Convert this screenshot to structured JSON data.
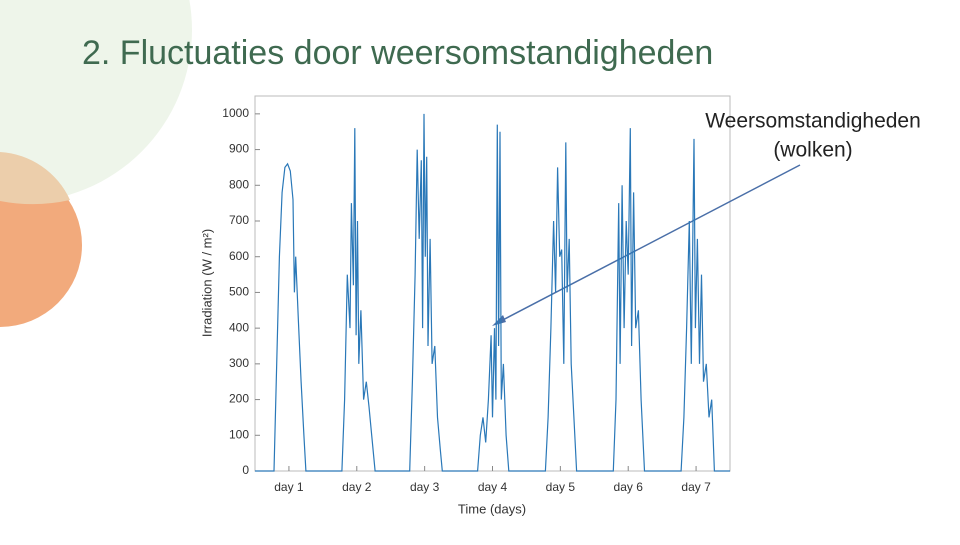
{
  "chart_data": {
    "type": "line",
    "title": "2. Fluctuaties door weersomstandigheden",
    "x_label": "Time (days)",
    "y_label": "Irradiation (W / m²)",
    "annotation": [
      "Weersomstandigheden",
      "(wolken)"
    ],
    "color": "#2a78b8",
    "xlim": [
      0.5,
      7.5
    ],
    "xticks": [
      {
        "value": 1,
        "label": "day 1"
      },
      {
        "value": 2,
        "label": "day 2"
      },
      {
        "value": 3,
        "label": "day 3"
      },
      {
        "value": 4,
        "label": "day 4"
      },
      {
        "value": 5,
        "label": "day 5"
      },
      {
        "value": 6,
        "label": "day 6"
      },
      {
        "value": 7,
        "label": "day 7"
      }
    ],
    "ylim": [
      0,
      1050
    ],
    "yticks": [
      0,
      100,
      200,
      300,
      400,
      500,
      600,
      700,
      800,
      900,
      1000
    ],
    "x": [
      0.5,
      0.78,
      0.82,
      0.86,
      0.9,
      0.94,
      0.98,
      1.02,
      1.06,
      1.08,
      1.1,
      1.14,
      1.18,
      1.22,
      1.25,
      1.78,
      1.82,
      1.86,
      1.9,
      1.92,
      1.95,
      1.97,
      1.99,
      2.01,
      2.03,
      2.06,
      2.1,
      2.14,
      2.18,
      2.22,
      2.27,
      2.78,
      2.82,
      2.86,
      2.89,
      2.92,
      2.95,
      2.97,
      2.99,
      3.01,
      3.03,
      3.05,
      3.08,
      3.11,
      3.15,
      3.19,
      3.23,
      3.26,
      3.78,
      3.82,
      3.86,
      3.9,
      3.94,
      3.98,
      4.0,
      4.03,
      4.05,
      4.07,
      4.09,
      4.11,
      4.13,
      4.16,
      4.2,
      4.24,
      4.78,
      4.82,
      4.86,
      4.9,
      4.93,
      4.96,
      4.99,
      5.02,
      5.05,
      5.08,
      5.1,
      5.13,
      5.16,
      5.2,
      5.24,
      5.78,
      5.82,
      5.86,
      5.88,
      5.91,
      5.94,
      5.97,
      6.0,
      6.03,
      6.05,
      6.08,
      6.11,
      6.15,
      6.19,
      6.24,
      6.78,
      6.82,
      6.86,
      6.9,
      6.93,
      6.97,
      6.99,
      7.02,
      7.05,
      7.08,
      7.11,
      7.15,
      7.19,
      7.23,
      7.27,
      7.5
    ],
    "values": [
      0,
      0,
      300,
      600,
      780,
      850,
      860,
      840,
      760,
      500,
      600,
      420,
      250,
      100,
      0,
      0,
      200,
      550,
      400,
      750,
      520,
      960,
      380,
      700,
      300,
      450,
      200,
      250,
      180,
      100,
      0,
      0,
      250,
      550,
      900,
      650,
      870,
      400,
      1000,
      600,
      880,
      350,
      650,
      300,
      350,
      150,
      60,
      0,
      0,
      100,
      150,
      80,
      200,
      380,
      150,
      400,
      200,
      970,
      350,
      950,
      200,
      300,
      100,
      0,
      0,
      150,
      400,
      700,
      500,
      850,
      600,
      620,
      300,
      920,
      500,
      650,
      300,
      150,
      0,
      0,
      200,
      750,
      300,
      800,
      400,
      700,
      550,
      960,
      350,
      780,
      400,
      450,
      200,
      0,
      0,
      150,
      400,
      700,
      300,
      930,
      400,
      650,
      300,
      550,
      250,
      300,
      150,
      200,
      0,
      0
    ]
  }
}
